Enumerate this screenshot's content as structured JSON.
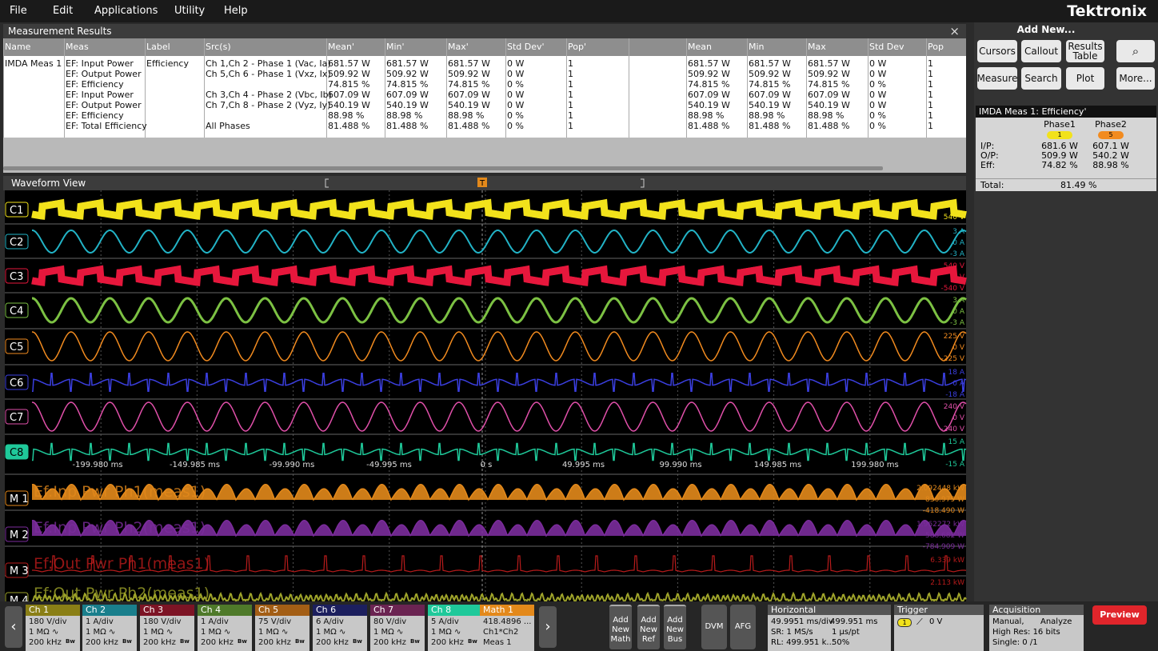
{
  "menu": [
    "File",
    "Edit",
    "Applications",
    "Utility",
    "Help"
  ],
  "brand": "Tektronix",
  "results": {
    "title": "Measurement Results",
    "close": "×",
    "headers": {
      "name": "Name",
      "meas": "Meas",
      "label": "Label",
      "src": "Src(s)",
      "mean_p": "Mean'",
      "min_p": "Min'",
      "max_p": "Max'",
      "std_p": "Std Dev'",
      "pop_p": "Pop'",
      "mean": "Mean",
      "min": "Min",
      "max": "Max",
      "std": "Std Dev",
      "pop": "Pop"
    },
    "rows": [
      {
        "name": "IMDA Meas 1",
        "meas": "EF: Input Power",
        "label": "Efficiency",
        "src": "Ch 1,Ch 2 - Phase 1 (Vac, Ia)",
        "mean_p": "681.57 W",
        "min_p": "681.57 W",
        "max_p": "681.57 W",
        "std_p": "0 W",
        "pop_p": "1",
        "mean": "681.57 W",
        "min": "681.57 W",
        "max": "681.57 W",
        "std": "0 W",
        "pop": "1"
      },
      {
        "meas": "EF: Output Power",
        "src": "Ch 5,Ch 6 - Phase 1 (Vxz, Ix)",
        "mean_p": "509.92 W",
        "min_p": "509.92 W",
        "max_p": "509.92 W",
        "std_p": "0 W",
        "pop_p": "1",
        "mean": "509.92 W",
        "min": "509.92 W",
        "max": "509.92 W",
        "std": "0 W",
        "pop": "1"
      },
      {
        "meas": "EF: Efficiency",
        "mean_p": "74.815 %",
        "min_p": "74.815 %",
        "max_p": "74.815 %",
        "std_p": "0 %",
        "pop_p": "1",
        "mean": "74.815 %",
        "min": "74.815 %",
        "max": "74.815 %",
        "std": "0 %",
        "pop": "1"
      },
      {
        "meas": "EF: Input Power",
        "src": "Ch 3,Ch 4 - Phase 2 (Vbc, Ib)",
        "mean_p": "607.09 W",
        "min_p": "607.09 W",
        "max_p": "607.09 W",
        "std_p": "0 W",
        "pop_p": "1",
        "mean": "607.09 W",
        "min": "607.09 W",
        "max": "607.09 W",
        "std": "0 W",
        "pop": "1"
      },
      {
        "meas": "EF: Output Power",
        "src": "Ch 7,Ch 8 - Phase 2 (Vyz, Iy)",
        "mean_p": "540.19 W",
        "min_p": "540.19 W",
        "max_p": "540.19 W",
        "std_p": "0 W",
        "pop_p": "1",
        "mean": "540.19 W",
        "min": "540.19 W",
        "max": "540.19 W",
        "std": "0 W",
        "pop": "1"
      },
      {
        "meas": "EF: Efficiency",
        "mean_p": "88.98 %",
        "min_p": "88.98 %",
        "max_p": "88.98 %",
        "std_p": "0 %",
        "pop_p": "1",
        "mean": "88.98 %",
        "min": "88.98 %",
        "max": "88.98 %",
        "std": "0 %",
        "pop": "1"
      },
      {
        "meas": "EF: Total Efficiency",
        "src": "All Phases",
        "mean_p": "81.488 %",
        "min_p": "81.488 %",
        "max_p": "81.488 %",
        "std_p": "0 %",
        "pop_p": "1",
        "mean": "81.488 %",
        "min": "81.488 %",
        "max": "81.488 %",
        "std": "0 %",
        "pop": "1"
      }
    ]
  },
  "waveform": {
    "title": "Waveform View",
    "trigger_marker": "T",
    "time_labels": [
      "-199.980 ms",
      "-149.985 ms",
      "-99.990 ms",
      "-49.995 ms",
      "0 s",
      "49.995 ms",
      "99.990 ms",
      "149.985 ms",
      "199.980 ms"
    ],
    "channels": [
      {
        "label": "C1",
        "color": "#f2e21b",
        "scale": [
          "540 V"
        ]
      },
      {
        "label": "C2",
        "color": "#22b3c6",
        "scale": [
          "3 A",
          "0 A",
          "-3 A"
        ]
      },
      {
        "label": "C3",
        "color": "#e6173c",
        "scale": [
          "540 V",
          "0 V",
          "-540 V"
        ]
      },
      {
        "label": "C4",
        "color": "#7cc143",
        "scale": [
          "3 A",
          "0 A",
          "-3 A"
        ]
      },
      {
        "label": "C5",
        "color": "#f28b1f",
        "scale": [
          "225 V",
          "0 V",
          "-225 V"
        ]
      },
      {
        "label": "C6",
        "color": "#3b3fe0",
        "scale": [
          "18 A",
          "0 A",
          "-18 A"
        ]
      },
      {
        "label": "C7",
        "color": "#e150aa",
        "scale": [
          "240 V",
          "0 V",
          "-240 V"
        ]
      },
      {
        "label": "C8",
        "color": "#1fc99a",
        "scale": [
          "15 A",
          "-15 A"
        ]
      },
      {
        "label": "M 1",
        "color": "#e3891b",
        "math": "Ef:Inp Pwr Ph1(meas1)",
        "scale": [
          "2.092448 kW",
          "836.979 W",
          "-418.490 W"
        ]
      },
      {
        "label": "M 2",
        "color": "#7b2c9c",
        "math": "Ef:Inp Pwr Ph2(meas1)",
        "scale": [
          "1.962272 kW",
          "588.682 W",
          "-784.909 W"
        ]
      },
      {
        "label": "M 3",
        "color": "#b81b1b",
        "math": "Ef:Out Pwr Ph1(meas1)",
        "scale": [
          "6.339 kW",
          "2.113 kW"
        ]
      },
      {
        "label": "M 4",
        "color": "#9ea32a",
        "math": "Ef:Out Pwr Ph2(meas1)"
      }
    ]
  },
  "side": {
    "add_new": "Add New...",
    "buttons": [
      "Cursors",
      "Callout",
      "Results Table",
      "Measure",
      "Search",
      "Plot",
      "More..."
    ],
    "badge": {
      "title": "IMDA Meas 1: Efficiency'",
      "phases": [
        "Phase1",
        "Phase2"
      ],
      "chips": [
        "1",
        "5"
      ],
      "rows": [
        {
          "label": "I/P:",
          "values": [
            "681.6 W",
            "607.1 W"
          ]
        },
        {
          "label": "O/P:",
          "values": [
            "509.9 W",
            "540.2 W"
          ]
        },
        {
          "label": "Eff:",
          "values": [
            "74.82 %",
            "88.98 %"
          ]
        }
      ],
      "total_label": "Total:",
      "total": "81.49 %"
    }
  },
  "bottom": {
    "bw": "Bw",
    "channels": [
      {
        "name": "Ch 1",
        "color": "#8a7f16",
        "lines": [
          "180 V/div",
          "1 MΩ ∿",
          "200 kHz"
        ]
      },
      {
        "name": "Ch 2",
        "color": "#1a7f8c",
        "lines": [
          "1 A/div",
          "1 MΩ ∿",
          "200 kHz"
        ]
      },
      {
        "name": "Ch 3",
        "color": "#7d1425",
        "lines": [
          "180 V/div",
          "1 MΩ ∿",
          "200 kHz"
        ]
      },
      {
        "name": "Ch 4",
        "color": "#4f7a2a",
        "lines": [
          "1 A/div",
          "1 MΩ ∿",
          "200 kHz"
        ]
      },
      {
        "name": "Ch 5",
        "color": "#a35e15",
        "lines": [
          "75 V/div",
          "1 MΩ ∿",
          "200 kHz"
        ]
      },
      {
        "name": "Ch 6",
        "color": "#1c1f5e",
        "lines": [
          "6 A/div",
          "1 MΩ ∿",
          "200 kHz"
        ]
      },
      {
        "name": "Ch 7",
        "color": "#6b2452",
        "lines": [
          "80 V/div",
          "1 MΩ ∿",
          "200 kHz"
        ]
      },
      {
        "name": "Ch 8",
        "color": "#1fc99a",
        "lines": [
          "5 A/div",
          "1 MΩ ∿",
          "200 kHz"
        ]
      },
      {
        "name": "Math 1",
        "color": "#e3891b",
        "lines": [
          "418.4896 ...",
          "Ch1*Ch2",
          "Meas 1"
        ]
      }
    ],
    "add_buttons": [
      [
        "Add",
        "New",
        "Math"
      ],
      [
        "Add",
        "New",
        "Ref"
      ],
      [
        "Add",
        "New",
        "Bus"
      ]
    ],
    "tools": [
      "DVM",
      "AFG"
    ],
    "horizontal": {
      "title": "Horizontal",
      "lines": [
        "49.9951 ms/div",
        "499.951 ms",
        "SR: 1 MS/s",
        "1 µs/pt",
        "RL: 499.951 k...",
        "50%"
      ]
    },
    "trigger": {
      "title": "Trigger",
      "chip": "1",
      "level": "0 V"
    },
    "acquisition": {
      "title": "Acquisition",
      "lines": [
        "Manual,",
        "Analyze",
        "High Res: 16 bits",
        "Single: 0 /1"
      ]
    },
    "preview": "Preview"
  }
}
